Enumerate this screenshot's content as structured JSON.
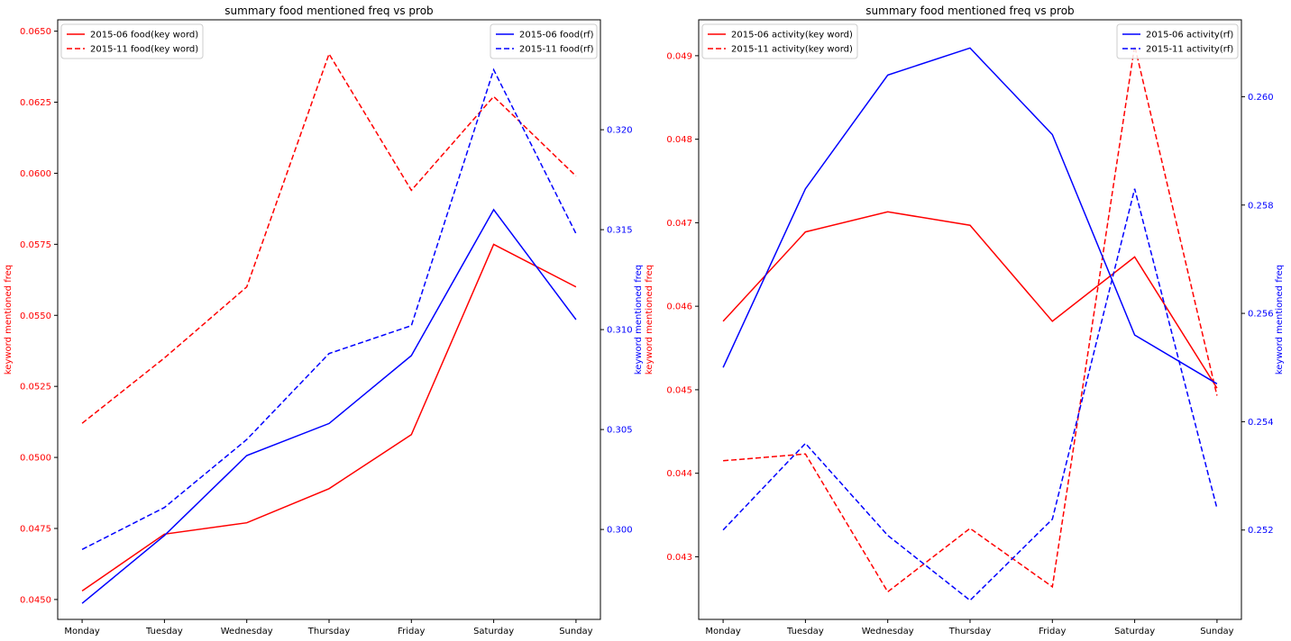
{
  "figure": {
    "colors": {
      "keyword": "#ff0000",
      "rf": "#0000ff",
      "axis": "#000000"
    }
  },
  "chart_data": [
    {
      "type": "line",
      "title": "summary food mentioned freq vs prob",
      "categories": [
        "Monday",
        "Tuesday",
        "Wednesday",
        "Thursday",
        "Friday",
        "Saturday",
        "Sunday"
      ],
      "left_axis": {
        "label": "keyword mentioned freq",
        "color": "#ff0000",
        "ylim": [
          0.0443,
          0.0654
        ],
        "ticks": [
          "0.0450",
          "0.0475",
          "0.0500",
          "0.0525",
          "0.0550",
          "0.0575",
          "0.0600",
          "0.0625",
          "0.0650"
        ]
      },
      "right_axis": {
        "label": "keyword mentioned freq",
        "color": "#0000ff",
        "ylim": [
          0.2955,
          0.3255
        ],
        "ticks": [
          "0.300",
          "0.305",
          "0.310",
          "0.315",
          "0.320"
        ]
      },
      "series": [
        {
          "name": "2015-06 food(key word)",
          "axis": "left",
          "color": "#ff0000",
          "dashed": false,
          "values": [
            0.0453,
            0.0473,
            0.0477,
            0.0489,
            0.0508,
            0.0575,
            0.056
          ]
        },
        {
          "name": "2015-11 food(key word)",
          "axis": "left",
          "color": "#ff0000",
          "dashed": true,
          "values": [
            0.0512,
            0.0535,
            0.056,
            0.0642,
            0.0594,
            0.0627,
            0.0599
          ]
        },
        {
          "name": "2015-06 food(rf)",
          "axis": "right",
          "color": "#0000ff",
          "dashed": false,
          "values": [
            0.2963,
            0.2997,
            0.3037,
            0.3053,
            0.3087,
            0.316,
            0.3105
          ]
        },
        {
          "name": "2015-11 food(rf)",
          "axis": "right",
          "color": "#0000ff",
          "dashed": true,
          "values": [
            0.299,
            0.3011,
            0.3045,
            0.3088,
            0.3102,
            0.323,
            0.3148
          ]
        }
      ],
      "legend_left": "top-left",
      "legend_right": "top-right",
      "grid": false
    },
    {
      "type": "line",
      "title": "summary food mentioned freq vs prob",
      "categories": [
        "Monday",
        "Tuesday",
        "Wednesday",
        "Thursday",
        "Friday",
        "Saturday",
        "Sunday"
      ],
      "left_axis": {
        "label": "keyword mentioned freq",
        "color": "#ff0000",
        "ylim": [
          0.04225,
          0.04943
        ],
        "ticks": [
          "0.043",
          "0.044",
          "0.045",
          "0.046",
          "0.047",
          "0.048",
          "0.049"
        ]
      },
      "right_axis": {
        "label": "keyword mentioned freq",
        "color": "#0000ff",
        "ylim": [
          0.25035,
          0.26142
        ],
        "ticks": [
          "0.252",
          "0.254",
          "0.256",
          "0.258",
          "0.260"
        ]
      },
      "series": [
        {
          "name": "2015-06 activity(key word)",
          "axis": "left",
          "color": "#ff0000",
          "dashed": false,
          "values": [
            0.04582,
            0.04689,
            0.04713,
            0.04697,
            0.04582,
            0.04659,
            0.04502
          ]
        },
        {
          "name": "2015-11 activity(key word)",
          "axis": "left",
          "color": "#ff0000",
          "dashed": true,
          "values": [
            0.04415,
            0.04423,
            0.04258,
            0.04334,
            0.04264,
            0.04912,
            0.04493
          ]
        },
        {
          "name": "2015-06 activity(rf)",
          "axis": "right",
          "color": "#0000ff",
          "dashed": false,
          "values": [
            0.255,
            0.2583,
            0.2604,
            0.2609,
            0.2593,
            0.2556,
            0.2547
          ]
        },
        {
          "name": "2015-11 activity(rf)",
          "axis": "right",
          "color": "#0000ff",
          "dashed": true,
          "values": [
            0.252,
            0.2536,
            0.2519,
            0.2507,
            0.2522,
            0.2583,
            0.2524
          ]
        }
      ],
      "legend_left": "top-left",
      "legend_right": "top-right",
      "grid": false
    }
  ]
}
